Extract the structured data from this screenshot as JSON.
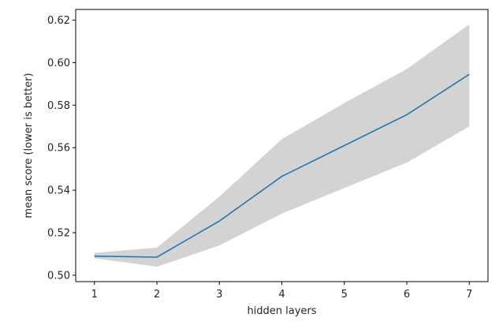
{
  "chart_data": {
    "type": "line",
    "title": "",
    "xlabel": "hidden layers",
    "ylabel": "mean score (lower is better)",
    "xlim": [
      0.7,
      7.3
    ],
    "ylim": [
      0.497,
      0.625
    ],
    "x_ticks": [
      1,
      2,
      3,
      4,
      5,
      6,
      7
    ],
    "y_ticks": [
      0.5,
      0.52,
      0.54,
      0.56,
      0.58,
      0.6,
      0.62
    ],
    "y_tick_labels": [
      "0.50",
      "0.52",
      "0.54",
      "0.56",
      "0.58",
      "0.60",
      "0.62"
    ],
    "grid": false,
    "legend": "none",
    "series": [
      {
        "x": [
          1,
          2,
          3,
          4,
          5,
          6,
          7
        ],
        "values": [
          0.509,
          0.5085,
          0.5255,
          0.5465,
          0.561,
          0.5755,
          0.5945
        ],
        "lower": [
          0.508,
          0.504,
          0.514,
          0.529,
          0.541,
          0.553,
          0.57
        ],
        "upper": [
          0.5105,
          0.513,
          0.537,
          0.564,
          0.581,
          0.597,
          0.618
        ],
        "color": "#1f77b4",
        "band_color": "#d3d3d3"
      }
    ]
  }
}
